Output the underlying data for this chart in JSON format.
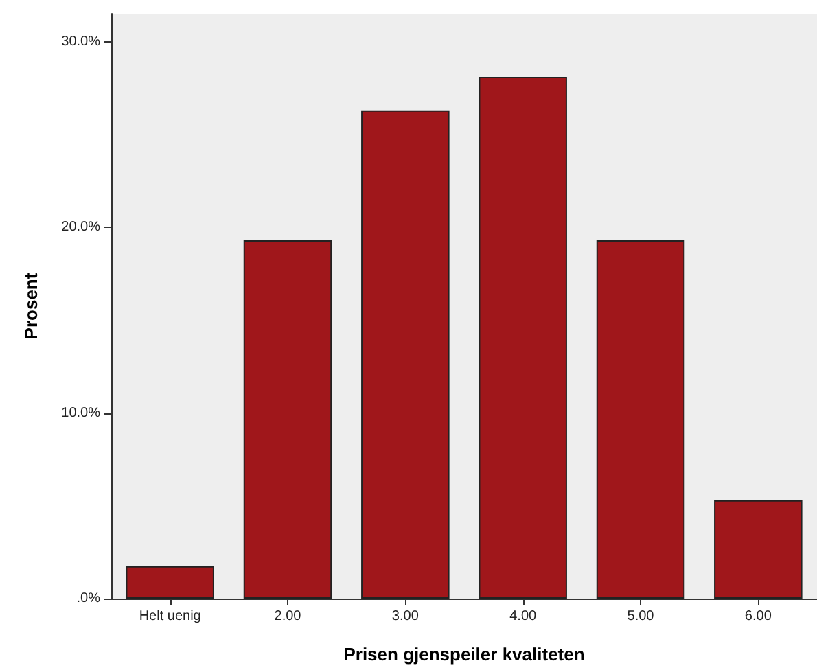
{
  "chart_data": {
    "type": "bar",
    "xlabel": "Prisen gjenspeiler kvaliteten",
    "ylabel": "Prosent",
    "categories": [
      "Helt uenig",
      "2.00",
      "3.00",
      "4.00",
      "5.00",
      "6.00"
    ],
    "values": [
      1.75,
      19.3,
      26.3,
      28.1,
      19.3,
      5.3
    ],
    "color": "#a0171b",
    "ylim": [
      0,
      31.5
    ],
    "yticks": [
      {
        "value": 0,
        "label": ".0%"
      },
      {
        "value": 10,
        "label": "10.0%"
      },
      {
        "value": 20,
        "label": "20.0%"
      },
      {
        "value": 30,
        "label": "30.0%"
      }
    ],
    "grid": false
  }
}
